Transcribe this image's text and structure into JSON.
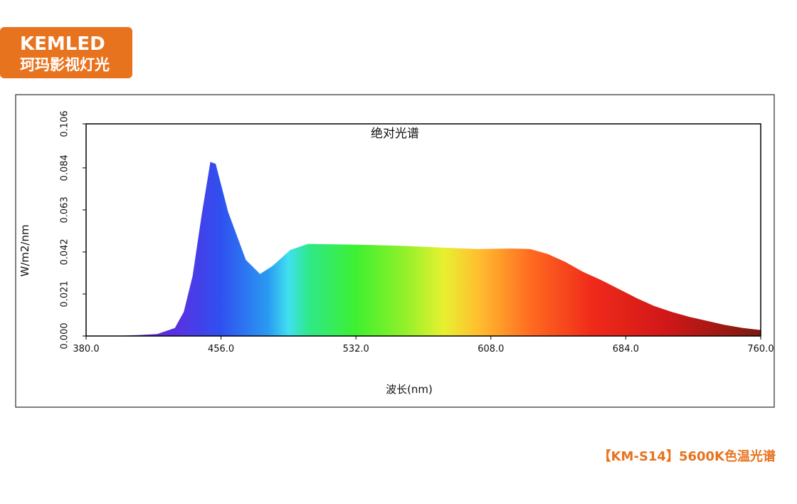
{
  "logo": {
    "name": "KEMLED",
    "subtitle": "珂玛影视灯光"
  },
  "caption": "【KM-S14】5600K色温光谱",
  "chart_data": {
    "type": "area",
    "title": "绝对光谱",
    "xlabel": "波长(nm)",
    "ylabel": "W/m2/nm",
    "x": [
      380,
      400,
      410,
      420,
      430,
      435,
      440,
      445,
      450,
      453,
      460,
      470,
      478,
      485,
      495,
      505,
      520,
      540,
      560,
      580,
      600,
      620,
      630,
      640,
      650,
      660,
      670,
      680,
      690,
      700,
      710,
      720,
      730,
      740,
      750,
      760
    ],
    "values": [
      0,
      0.0002,
      0.0005,
      0.001,
      0.004,
      0.012,
      0.03,
      0.06,
      0.087,
      0.086,
      0.062,
      0.038,
      0.031,
      0.035,
      0.043,
      0.046,
      0.0458,
      0.0455,
      0.045,
      0.0442,
      0.0435,
      0.0437,
      0.0435,
      0.041,
      0.037,
      0.032,
      0.028,
      0.0235,
      0.019,
      0.015,
      0.012,
      0.0095,
      0.0075,
      0.0055,
      0.004,
      0.003
    ],
    "xlim": [
      380,
      760
    ],
    "xticks": [
      {
        "value": 380,
        "label": "380.0"
      },
      {
        "value": 456,
        "label": "456.0"
      },
      {
        "value": 532,
        "label": "532.0"
      },
      {
        "value": 608,
        "label": "608.0"
      },
      {
        "value": 684,
        "label": "684.0"
      },
      {
        "value": 760,
        "label": "760.0"
      }
    ],
    "ylim": [
      0,
      0.106
    ],
    "yticks": [
      {
        "value": 0,
        "label": "0.000"
      },
      0.021,
      0.042,
      0.063,
      0.084,
      0.106
    ]
  }
}
